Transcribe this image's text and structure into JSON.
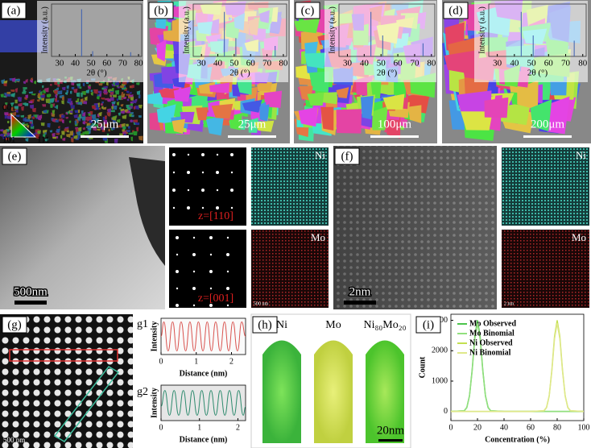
{
  "panel_labels": [
    "(a)",
    "(b)",
    "(c)",
    "(d)",
    "(e)",
    "(f)",
    "(g)",
    "(h)",
    "(i)"
  ],
  "scale_bars": [
    "25μm",
    "25μm",
    "100μm",
    "200μm",
    "500nm",
    "2nm",
    "500 pm",
    "20nm"
  ],
  "ipf_key": [
    "001",
    "101",
    "111"
  ],
  "saed_zones": [
    "z=[110]",
    "z=[001]"
  ],
  "eds_maps": {
    "e": [
      "Ni",
      "Mo"
    ],
    "f": [
      "Ni",
      "Mo"
    ]
  },
  "eds_scale": [
    "500 nm",
    "2 nm"
  ],
  "apt_labels": [
    "Ni",
    "Mo",
    "Ni₈₀Mo₂₀"
  ],
  "chart_data": [
    {
      "type": "stem",
      "xlabel": "2θ (°)",
      "ylabel": "Intensity (a.u.)",
      "x": [
        44,
        51,
        75
      ],
      "values": [
        0.9,
        0.1,
        0.08
      ],
      "color": "#3a5fb0",
      "xlim": [
        25,
        82
      ],
      "xticks": [
        30,
        40,
        50,
        60,
        70,
        80
      ],
      "ylim": [
        0,
        1
      ]
    },
    {
      "type": "stem",
      "xlabel": "2θ (°)",
      "ylabel": "Intensity (a.u.)",
      "x": [
        44,
        51,
        75
      ],
      "values": [
        0.85,
        0.35,
        0.2
      ],
      "color": "#3a5fb0",
      "xlim": [
        25,
        82
      ],
      "xticks": [
        30,
        40,
        50,
        60,
        70,
        80
      ],
      "ylim": [
        0,
        1
      ]
    },
    {
      "type": "stem",
      "xlabel": "2θ (°)",
      "ylabel": "Intensity (a.u.)",
      "x": [
        44,
        51,
        75
      ],
      "values": [
        0.85,
        0.4,
        0.25
      ],
      "color": "#3a5fb0",
      "xlim": [
        25,
        82
      ],
      "xticks": [
        30,
        40,
        50,
        60,
        70,
        80
      ],
      "ylim": [
        0,
        1
      ]
    },
    {
      "type": "stem",
      "xlabel": "2θ (°)",
      "ylabel": "Intensity (a.u.)",
      "x": [
        44,
        51,
        75
      ],
      "values": [
        0.85,
        0.4,
        0.3
      ],
      "color": "#3a5fb0",
      "xlim": [
        25,
        82
      ],
      "xticks": [
        30,
        40,
        50,
        60,
        70,
        80
      ],
      "ylim": [
        0,
        1
      ]
    },
    {
      "type": "line",
      "title": "g1",
      "xlabel": "Distance (nm)",
      "ylabel": "Intensity",
      "smooth": true,
      "xlim": [
        0,
        2.4
      ],
      "xticks": [
        0,
        1,
        2
      ],
      "ylim": [
        0,
        1
      ],
      "x": [
        0,
        0.08,
        0.2,
        0.33,
        0.45,
        0.57,
        0.7,
        0.82,
        0.94,
        1.06,
        1.19,
        1.31,
        1.43,
        1.55,
        1.68,
        1.8,
        1.92,
        2.04,
        2.17,
        2.29,
        2.4
      ],
      "series": [
        {
          "color": "#d9534f",
          "values": [
            0.5,
            0.9,
            0.1,
            0.9,
            0.1,
            0.9,
            0.1,
            0.9,
            0.1,
            0.9,
            0.1,
            0.9,
            0.1,
            0.9,
            0.1,
            0.9,
            0.1,
            0.9,
            0.1,
            0.9,
            0.5
          ]
        }
      ]
    },
    {
      "type": "line",
      "title": "g2",
      "xlabel": "Distance (nm)",
      "ylabel": "Intensity",
      "smooth": true,
      "xlim": [
        0,
        2.2
      ],
      "xticks": [
        0,
        1,
        2
      ],
      "ylim": [
        0,
        1
      ],
      "x": [
        0,
        0.1,
        0.22,
        0.34,
        0.46,
        0.58,
        0.7,
        0.82,
        0.94,
        1.06,
        1.18,
        1.3,
        1.42,
        1.54,
        1.66,
        1.78,
        1.9,
        2.02,
        2.14,
        2.2
      ],
      "series": [
        {
          "color": "#2e8b6e",
          "values": [
            0.4,
            0.85,
            0.15,
            0.85,
            0.15,
            0.85,
            0.15,
            0.85,
            0.15,
            0.85,
            0.15,
            0.85,
            0.15,
            0.85,
            0.15,
            0.85,
            0.15,
            0.85,
            0.15,
            0.4
          ]
        }
      ]
    },
    {
      "type": "line",
      "xlabel": "Concentration (%)",
      "ylabel": "Count",
      "xlim": [
        0,
        100
      ],
      "xticks": [
        0,
        20,
        40,
        60,
        80,
        100
      ],
      "ylim": [
        -300,
        3200
      ],
      "yticks": [
        0,
        1000,
        2000,
        3000
      ],
      "legend": "upper-left",
      "x": [
        0,
        10,
        12,
        14,
        16,
        18,
        20,
        22,
        24,
        26,
        28,
        30,
        40,
        60,
        70,
        72,
        74,
        76,
        78,
        80,
        82,
        84,
        86,
        88,
        90,
        100
      ],
      "series": [
        {
          "name": "Mo Observed",
          "color": "#4cc44c",
          "values": [
            0,
            20,
            130,
            520,
            1370,
            2470,
            3000,
            2470,
            1370,
            520,
            130,
            20,
            0,
            0,
            0,
            0,
            0,
            0,
            0,
            0,
            0,
            0,
            0,
            0,
            0,
            0
          ]
        },
        {
          "name": "Mo Binomial",
          "color": "#92e07e",
          "values": [
            0,
            25,
            140,
            510,
            1330,
            2390,
            2900,
            2390,
            1330,
            510,
            140,
            25,
            0,
            0,
            0,
            0,
            0,
            0,
            0,
            0,
            0,
            0,
            0,
            0,
            0,
            0
          ]
        },
        {
          "name": "Ni Observed",
          "color": "#c3e050",
          "values": [
            0,
            0,
            0,
            0,
            0,
            0,
            0,
            0,
            0,
            0,
            0,
            0,
            0,
            0,
            20,
            130,
            520,
            1370,
            2470,
            3000,
            2470,
            1370,
            520,
            130,
            20,
            0
          ]
        },
        {
          "name": "Ni Binomial",
          "color": "#dfe88a",
          "values": [
            0,
            0,
            0,
            0,
            0,
            0,
            0,
            0,
            0,
            0,
            0,
            0,
            0,
            0,
            25,
            140,
            510,
            1330,
            2390,
            2900,
            2390,
            1330,
            510,
            140,
            25,
            0
          ]
        }
      ]
    }
  ]
}
